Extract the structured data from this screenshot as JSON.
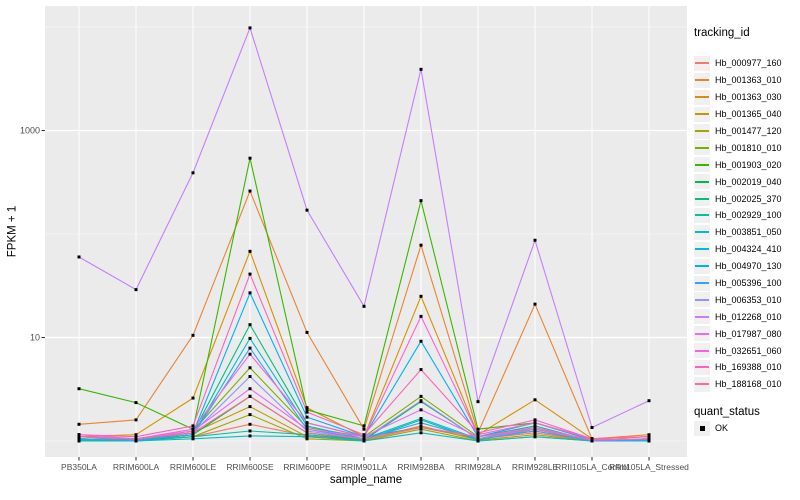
{
  "figure": {
    "xlabel": "sample_name",
    "ylabel": "FPKM + 1"
  },
  "legend": {
    "tracking_title": "tracking_id",
    "quant_title": "quant_status",
    "quant_ok_label": "OK",
    "quant_marker_color": "#000000"
  },
  "colors": {
    "panel_bg": "#EBEBEB",
    "grid": "#FFFFFF",
    "axis_text": "#4D4D4D",
    "tick_mark": "#333333",
    "legend_key_bg": "#F0F0F0",
    "point": "#000000"
  },
  "chart_data": {
    "type": "line",
    "title": "",
    "xlabel": "sample_name",
    "ylabel": "FPKM + 1",
    "y_scale": "log10",
    "grid": true,
    "legend_position": "right",
    "point_marker": "filled-black-square",
    "quant_status_all": "OK",
    "y_ticks": [
      1000,
      10
    ],
    "y_tick_labels": [
      "1000",
      "10"
    ],
    "y_minor_gridlines": [
      10000,
      100,
      1
    ],
    "ylim": [
      0.85,
      15000
    ],
    "categories": [
      "PB350LA",
      "RRIM600LA",
      "RRIM600LE",
      "RRIM600SE",
      "RRIM600PE",
      "RRIM901LA",
      "RRIM928BA",
      "RRIM928LA",
      "RRIM928LE",
      "RRII105LA_Control",
      "RRII105LA_Stressed"
    ],
    "series": [
      {
        "name": "Hb_000977_160",
        "color": "#F8766D",
        "values": [
          1.1,
          1.02,
          1.1,
          1.45,
          1.12,
          1.02,
          1.35,
          1.05,
          1.2,
          1.0,
          1.05
        ]
      },
      {
        "name": "Hb_001363_010",
        "color": "#EA8331",
        "values": [
          1.45,
          1.6,
          10.5,
          260,
          11.2,
          1.3,
          78,
          1.2,
          21,
          1.05,
          1.15
        ]
      },
      {
        "name": "Hb_001363_030",
        "color": "#D89000",
        "values": [
          1.1,
          1.15,
          2.6,
          68,
          2.1,
          1.1,
          25,
          1.15,
          2.5,
          1.05,
          1.1
        ]
      },
      {
        "name": "Hb_001365_040",
        "color": "#C09B00",
        "values": [
          1.05,
          1.02,
          1.2,
          2.15,
          1.1,
          1.02,
          1.4,
          1.02,
          1.15,
          1.0,
          1.02
        ]
      },
      {
        "name": "Hb_001477_120",
        "color": "#A3A500",
        "values": [
          1.02,
          1.0,
          1.1,
          1.8,
          1.05,
          1.0,
          1.3,
          1.0,
          1.1,
          1.0,
          1.0
        ]
      },
      {
        "name": "Hb_001810_010",
        "color": "#7CAE00",
        "values": [
          1.1,
          1.05,
          1.25,
          5.1,
          1.35,
          1.1,
          2.7,
          1.1,
          1.3,
          1.02,
          1.05
        ]
      },
      {
        "name": "Hb_001903_020",
        "color": "#39B600",
        "values": [
          3.2,
          2.35,
          1.3,
          540,
          2.0,
          1.4,
          210,
          1.3,
          1.5,
          1.05,
          1.1
        ]
      },
      {
        "name": "Hb_002019_040",
        "color": "#00BB4E",
        "values": [
          1.02,
          1.0,
          1.15,
          2.7,
          1.2,
          1.02,
          2.4,
          1.05,
          1.25,
          1.0,
          1.02
        ]
      },
      {
        "name": "Hb_002025_370",
        "color": "#00BF7D",
        "values": [
          1.05,
          1.02,
          1.2,
          13.3,
          1.5,
          1.1,
          1.35,
          1.1,
          1.4,
          1.0,
          1.05
        ]
      },
      {
        "name": "Hb_002929_100",
        "color": "#00C1A3",
        "values": [
          1.02,
          1.0,
          1.1,
          1.25,
          1.15,
          1.02,
          1.6,
          1.02,
          1.3,
          1.0,
          1.02
        ]
      },
      {
        "name": "Hb_003851_050",
        "color": "#00BFC4",
        "values": [
          1.0,
          1.0,
          1.05,
          1.12,
          1.1,
          1.0,
          1.2,
          1.0,
          1.1,
          1.0,
          1.0
        ]
      },
      {
        "name": "Hb_004324_410",
        "color": "#00BBDA",
        "values": [
          1.05,
          1.02,
          1.15,
          9.8,
          1.4,
          1.05,
          1.65,
          1.05,
          1.35,
          1.0,
          1.02
        ]
      },
      {
        "name": "Hb_004970_130",
        "color": "#00B0F6",
        "values": [
          1.1,
          1.05,
          1.2,
          27,
          1.7,
          1.1,
          9.2,
          1.1,
          1.5,
          1.02,
          1.05
        ]
      },
      {
        "name": "Hb_005396_100",
        "color": "#35A2FF",
        "values": [
          1.05,
          1.02,
          1.15,
          7.9,
          1.3,
          1.05,
          1.5,
          1.05,
          1.25,
          1.0,
          1.02
        ]
      },
      {
        "name": "Hb_006353_010",
        "color": "#9590FF",
        "values": [
          1.1,
          1.05,
          1.2,
          4.2,
          1.25,
          1.05,
          2.45,
          1.05,
          1.3,
          1.02,
          1.05
        ]
      },
      {
        "name": "Hb_012268_010",
        "color": "#C77CFF",
        "values": [
          60,
          29,
          390,
          9800,
          170,
          20,
          3900,
          2.4,
          87,
          1.35,
          2.45
        ]
      },
      {
        "name": "Hb_017987_080",
        "color": "#E76BF3",
        "values": [
          1.15,
          1.05,
          1.25,
          3.2,
          1.3,
          1.1,
          2.0,
          1.1,
          1.35,
          1.02,
          1.05
        ]
      },
      {
        "name": "Hb_032651_060",
        "color": "#FA62DB",
        "values": [
          1.1,
          1.05,
          1.3,
          6.9,
          1.5,
          1.1,
          16,
          1.15,
          1.5,
          1.05,
          1.1
        ]
      },
      {
        "name": "Hb_169388_010",
        "color": "#FF62BC",
        "values": [
          1.15,
          1.1,
          1.4,
          41,
          1.9,
          1.15,
          4.9,
          1.2,
          1.6,
          1.05,
          1.1
        ]
      },
      {
        "name": "Hb_188168_010",
        "color": "#FF6A98",
        "values": [
          1.1,
          1.05,
          1.2,
          2.7,
          1.2,
          1.05,
          1.36,
          1.1,
          1.3,
          1.02,
          1.05
        ]
      }
    ]
  }
}
